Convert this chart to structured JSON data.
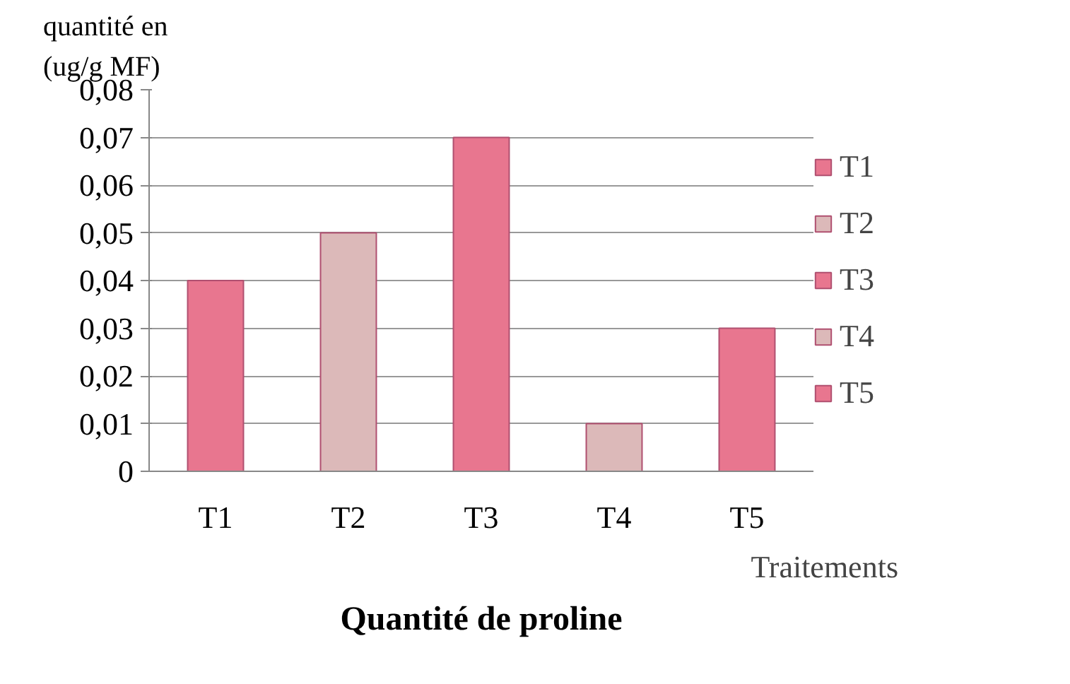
{
  "chart_data": {
    "type": "bar",
    "title": "Quantité de proline",
    "xlabel": "Traitements",
    "ylabel": "quantité en\n(ug/g MF)",
    "categories": [
      "T1",
      "T2",
      "T3",
      "T4",
      "T5"
    ],
    "series": [
      {
        "name": "T1",
        "color": "#e8768f",
        "values": [
          0.04,
          null,
          null,
          null,
          null
        ]
      },
      {
        "name": "T2",
        "color": "#dcb9b9",
        "values": [
          null,
          0.05,
          null,
          null,
          null
        ]
      },
      {
        "name": "T3",
        "color": "#e8768f",
        "values": [
          null,
          null,
          0.07,
          null,
          null
        ]
      },
      {
        "name": "T4",
        "color": "#dcb9b9",
        "values": [
          null,
          null,
          null,
          0.01,
          null
        ]
      },
      {
        "name": "T5",
        "color": "#e8768f",
        "values": [
          null,
          null,
          null,
          null,
          0.03
        ]
      }
    ],
    "ylim": [
      0,
      0.08
    ],
    "yticks": [
      {
        "value": 0,
        "label": "0"
      },
      {
        "value": 0.01,
        "label": "0,01"
      },
      {
        "value": 0.02,
        "label": "0,02"
      },
      {
        "value": 0.03,
        "label": "0,03"
      },
      {
        "value": 0.04,
        "label": "0,04"
      },
      {
        "value": 0.05,
        "label": "0,05"
      },
      {
        "value": 0.06,
        "label": "0,06"
      },
      {
        "value": 0.07,
        "label": "0,07"
      },
      {
        "value": 0.08,
        "label": "0,08"
      }
    ],
    "grid": "y",
    "legend": "right"
  }
}
